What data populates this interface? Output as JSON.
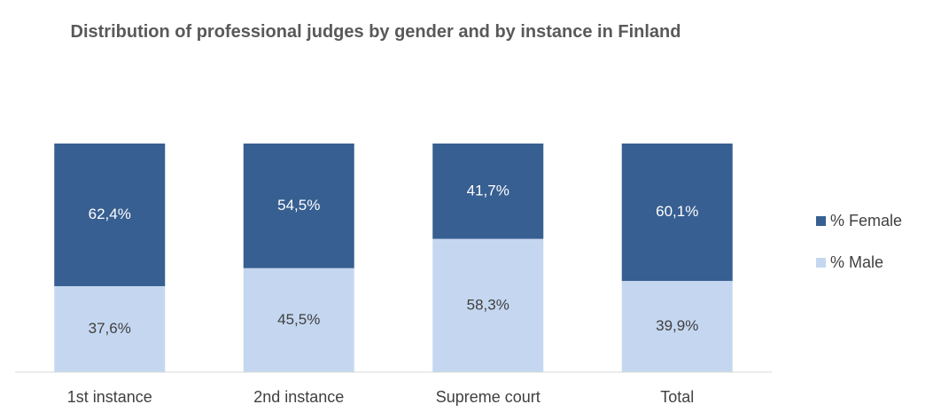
{
  "chart_data": {
    "type": "stacked_bar",
    "title": "Distribution of professional judges by gender and by instance in Finland",
    "categories": [
      "1st instance",
      "2nd instance",
      "Supreme court",
      "Total"
    ],
    "series": [
      {
        "name": "% Female",
        "color": "#375f91",
        "label_color": "#ffffff",
        "values": [
          62.4,
          54.5,
          41.7,
          60.1
        ],
        "value_labels": [
          "62,4%",
          "54,5%",
          "41,7%",
          "60,1%"
        ]
      },
      {
        "name": "% Male",
        "color": "#c5d7f0",
        "label_color": "#404040",
        "values": [
          37.6,
          45.5,
          58.3,
          39.9
        ],
        "value_labels": [
          "37,6%",
          "45,5%",
          "58,3%",
          "39,9%"
        ]
      }
    ],
    "legend": "right"
  }
}
